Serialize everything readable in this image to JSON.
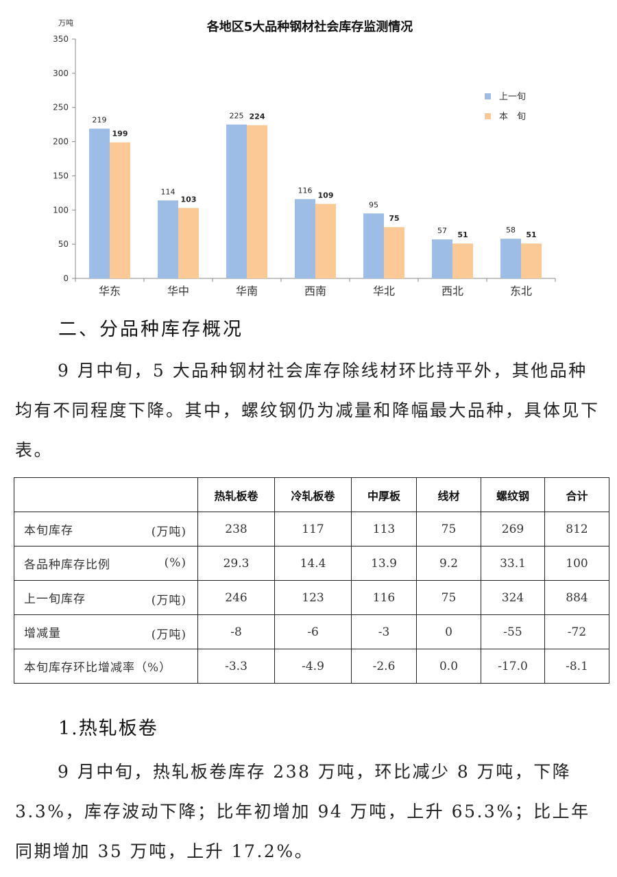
{
  "chart_data": {
    "type": "bar",
    "title": "各地区5大品种钢材社会库存监测情况",
    "ylabel": "万吨",
    "ylim": [
      0,
      350
    ],
    "yticks": [
      0,
      50,
      100,
      150,
      200,
      250,
      300,
      350
    ],
    "categories": [
      "华东",
      "华中",
      "华南",
      "西南",
      "华北",
      "西北",
      "东北"
    ],
    "series": [
      {
        "name": "上一旬",
        "values": [
          219,
          114,
          225,
          116,
          95,
          57,
          58
        ],
        "color": "#9dbde6"
      },
      {
        "name": "本　旬",
        "values": [
          199,
          103,
          224,
          109,
          75,
          51,
          51
        ],
        "color": "#fbc995"
      }
    ],
    "legend": "top-right",
    "grid": false
  },
  "section_title": "二、分品种库存概况",
  "intro_text": "9 月中旬，5 大品种钢材社会库存除线材环比持平外，其他品种均有不同程度下降。其中，螺纹钢仍为减量和降幅最大品种，具体见下表。",
  "table": {
    "headers": [
      "",
      "热轧板卷",
      "冷轧板卷",
      "中厚板",
      "线材",
      "螺纹钢",
      "合计"
    ],
    "rows": [
      {
        "label": "本旬库存",
        "unit": "(万吨)",
        "values": [
          "238",
          "117",
          "113",
          "75",
          "269",
          "812"
        ]
      },
      {
        "label": "各品种库存比例",
        "unit": "(%)",
        "values": [
          "29.3",
          "14.4",
          "13.9",
          "9.2",
          "33.1",
          "100"
        ]
      },
      {
        "label": "上一旬库存",
        "unit": "(万吨)",
        "values": [
          "246",
          "123",
          "116",
          "75",
          "324",
          "884"
        ]
      },
      {
        "label": "增减量",
        "unit": "(万吨)",
        "values": [
          "-8",
          "-6",
          "-3",
          "0",
          "-55",
          "-72"
        ]
      },
      {
        "label": "本旬库存环比增减率（%）",
        "unit": "",
        "values": [
          "-3.3",
          "-4.9",
          "-2.6",
          "0.0",
          "-17.0",
          "-8.1"
        ]
      }
    ]
  },
  "subsection_title": "1.热轧板卷",
  "detail_text": "9 月中旬，热轧板卷库存 238 万吨，环比减少 8 万吨，下降 3.3%，库存波动下降；比年初增加 94 万吨，上升 65.3%；比上年同期增加 35 万吨，上升 17.2%。"
}
